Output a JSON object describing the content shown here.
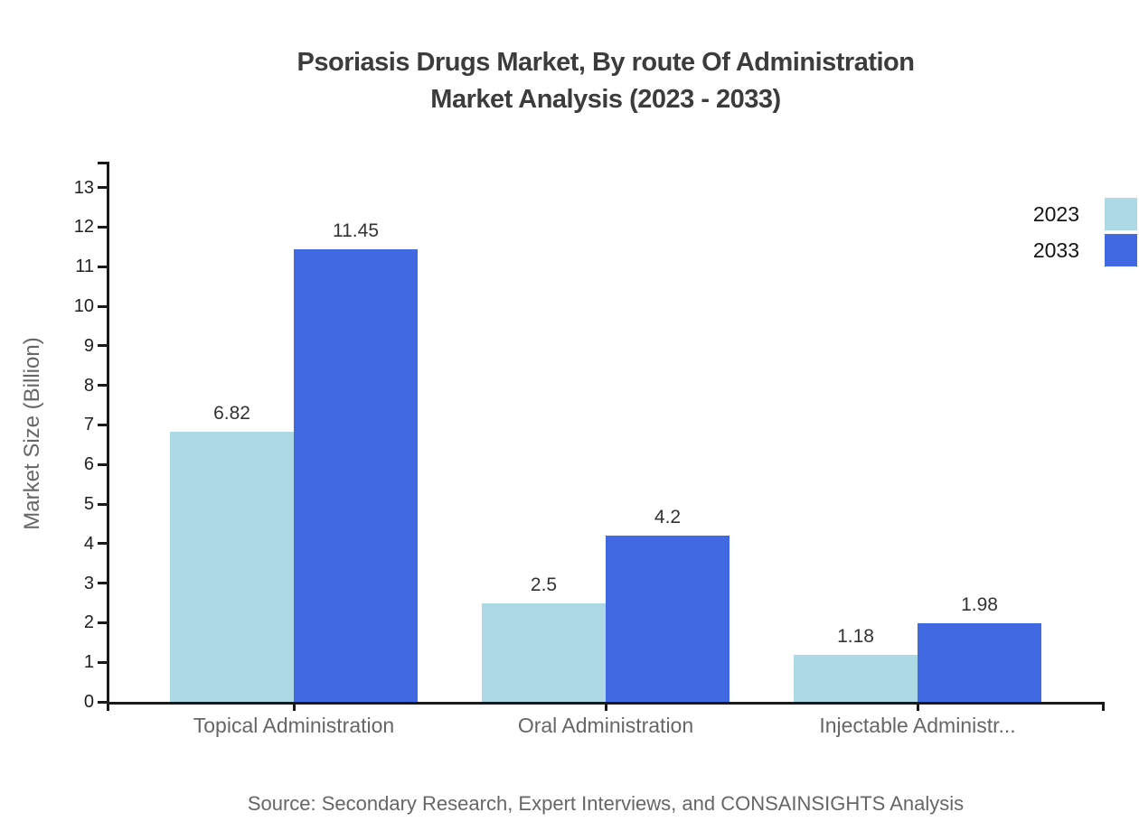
{
  "title": {
    "line1": "Psoriasis Drugs Market, By route Of Administration",
    "line2": "Market Analysis (2023 - 2033)"
  },
  "chart_data": {
    "type": "bar",
    "categories": [
      "Topical Administration",
      "Oral Administration",
      "Injectable Administr..."
    ],
    "series": [
      {
        "name": "2023",
        "color": "#ADD8E6",
        "values": [
          6.82,
          2.5,
          1.18
        ]
      },
      {
        "name": "2033",
        "color": "#4169E1",
        "values": [
          11.45,
          4.2,
          1.98
        ]
      }
    ],
    "title": "Psoriasis Drugs Market, By route Of Administration Market Analysis (2023 - 2033)",
    "xlabel": "",
    "ylabel": "Market Size (Billion)",
    "ylim": [
      0,
      13.7
    ],
    "yticks": [
      0,
      1,
      2,
      3,
      4,
      5,
      6,
      7,
      8,
      9,
      10,
      11,
      12,
      13
    ],
    "grid": false,
    "legend_position": "top-right",
    "value_labels_shown": true
  },
  "legend": {
    "items": [
      {
        "label": "2023",
        "color": "#ADD8E6"
      },
      {
        "label": "2033",
        "color": "#4169E1"
      }
    ]
  },
  "source_note": "Source: Secondary Research, Expert Interviews, and CONSAINSIGHTS Analysis",
  "colors": {
    "series_2023": "#ADD8E6",
    "series_2033": "#4169E1",
    "axis": "#1a1a1a",
    "title_text": "#3c3c3c",
    "muted_text": "#666666"
  }
}
